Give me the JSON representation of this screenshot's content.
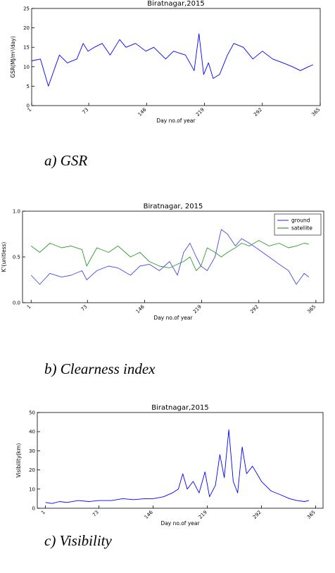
{
  "captions": [
    "a) GSR",
    "b) Clearness index",
    "c) Visibility"
  ],
  "chart_data": [
    {
      "type": "line",
      "title": "Biratnagar,2015",
      "xlabel": "Day no.of year",
      "ylabel": "GSR(MJ/m²/day)",
      "xticks": [
        "1",
        "73",
        "146",
        "219",
        "292",
        "365"
      ],
      "xtick_values": [
        1,
        73,
        146,
        219,
        292,
        365
      ],
      "yticks": [
        "0",
        "5",
        "10",
        "15",
        "20",
        "25"
      ],
      "ylim": [
        0,
        25
      ],
      "xlim": [
        1,
        365
      ],
      "grid": false,
      "series": [
        {
          "color": "#0000ff",
          "x": [
            1,
            12,
            22,
            36,
            46,
            58,
            66,
            72,
            80,
            90,
            100,
            112,
            120,
            132,
            145,
            155,
            170,
            180,
            195,
            206,
            212,
            218,
            224,
            230,
            238,
            248,
            256,
            268,
            280,
            292,
            305,
            318,
            330,
            340,
            350,
            356
          ],
          "y": [
            11.5,
            12,
            5,
            13,
            11,
            12,
            16,
            14,
            15,
            16,
            13,
            17,
            15,
            16,
            14,
            15,
            12,
            14,
            13,
            9,
            18.5,
            8,
            11,
            7,
            8,
            13,
            16,
            15,
            12,
            14,
            12,
            11,
            10,
            9,
            10,
            10.5
          ]
        }
      ]
    },
    {
      "type": "line",
      "title": "Biratnagar, 2015",
      "xlabel": "Day no.of year",
      "ylabel": "Kᵀ(unitless)",
      "xticks": [
        "1",
        "73",
        "146",
        "219",
        "292",
        "365"
      ],
      "xtick_values": [
        1,
        73,
        146,
        219,
        292,
        365
      ],
      "yticks": [
        "0.0",
        "0.5",
        "1.0"
      ],
      "ylim": [
        0,
        1
      ],
      "xlim": [
        -10,
        375
      ],
      "grid": false,
      "legend": "top-right",
      "series": [
        {
          "name": "ground",
          "color": "#4a4ae6",
          "x": [
            1,
            12,
            25,
            40,
            52,
            66,
            72,
            85,
            100,
            112,
            128,
            140,
            152,
            165,
            178,
            188,
            196,
            204,
            212,
            218,
            226,
            236,
            244,
            252,
            262,
            270,
            280,
            292,
            305,
            318,
            330,
            340,
            350,
            356
          ],
          "y": [
            0.3,
            0.2,
            0.32,
            0.28,
            0.3,
            0.35,
            0.25,
            0.35,
            0.4,
            0.38,
            0.3,
            0.4,
            0.42,
            0.35,
            0.45,
            0.3,
            0.55,
            0.65,
            0.5,
            0.4,
            0.35,
            0.5,
            0.8,
            0.75,
            0.62,
            0.7,
            0.65,
            0.58,
            0.5,
            0.42,
            0.35,
            0.2,
            0.32,
            0.28
          ]
        },
        {
          "name": "satellite",
          "color": "#2e9a2e",
          "x": [
            1,
            12,
            25,
            40,
            52,
            66,
            72,
            85,
            100,
            112,
            128,
            140,
            152,
            165,
            178,
            188,
            196,
            204,
            212,
            218,
            226,
            236,
            244,
            252,
            262,
            270,
            280,
            292,
            305,
            318,
            330,
            340,
            350,
            356
          ],
          "y": [
            0.62,
            0.55,
            0.65,
            0.6,
            0.62,
            0.58,
            0.4,
            0.6,
            0.55,
            0.62,
            0.5,
            0.55,
            0.45,
            0.4,
            0.38,
            0.42,
            0.45,
            0.5,
            0.35,
            0.4,
            0.6,
            0.55,
            0.5,
            0.55,
            0.6,
            0.65,
            0.62,
            0.68,
            0.62,
            0.65,
            0.6,
            0.62,
            0.65,
            0.64
          ]
        }
      ]
    },
    {
      "type": "line",
      "title": "Biratnagar,2015",
      "xlabel": "Day no.of year",
      "ylabel": "Visibility(km)",
      "xticks": [
        "1",
        "73",
        "146",
        "219",
        "292",
        "365"
      ],
      "xtick_values": [
        1,
        73,
        146,
        219,
        292,
        365
      ],
      "yticks": [
        "0",
        "10",
        "20",
        "30",
        "40",
        "50"
      ],
      "ylim": [
        0,
        50
      ],
      "xlim": [
        -10,
        375
      ],
      "grid": false,
      "series": [
        {
          "color": "#0000ff",
          "x": [
            1,
            10,
            20,
            30,
            45,
            60,
            73,
            90,
            105,
            120,
            135,
            146,
            160,
            172,
            180,
            186,
            192,
            200,
            208,
            216,
            222,
            230,
            236,
            242,
            248,
            254,
            260,
            266,
            272,
            280,
            292,
            305,
            318,
            330,
            340,
            350,
            356
          ],
          "y": [
            3,
            2.5,
            3.5,
            3,
            4,
            3.5,
            4,
            4,
            5,
            4.5,
            5,
            5,
            6,
            8,
            10,
            18,
            10,
            14,
            8,
            19,
            6,
            12,
            28,
            16,
            41,
            14,
            8,
            32,
            18,
            22,
            14,
            9,
            7,
            5,
            4,
            3.5,
            4
          ]
        }
      ]
    }
  ]
}
